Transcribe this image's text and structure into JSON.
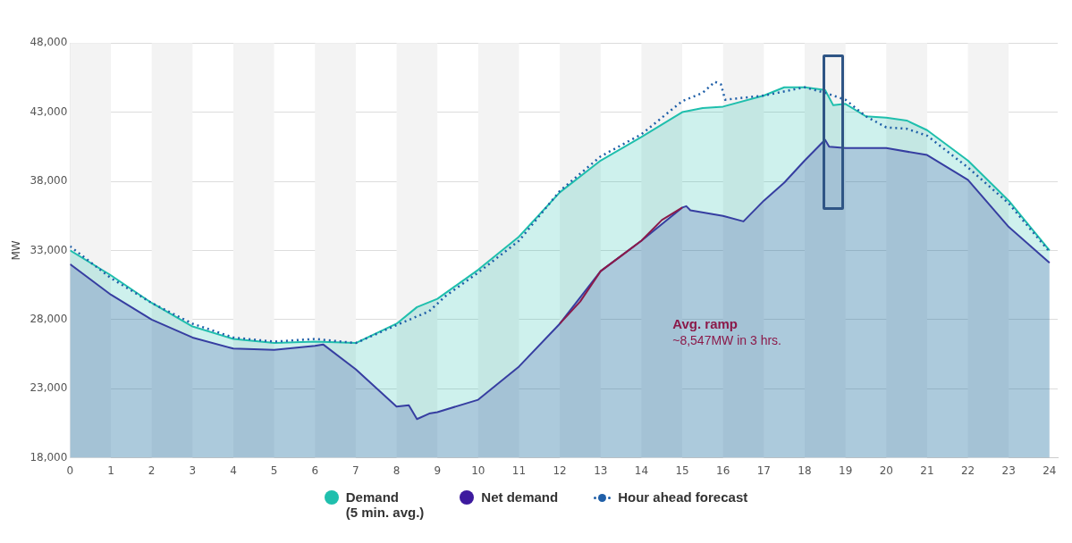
{
  "chart_data": {
    "type": "area",
    "ylabel": "MW",
    "xlim": [
      0,
      24.2
    ],
    "xticks": [
      0,
      1,
      2,
      3,
      4,
      5,
      6,
      7,
      8,
      9,
      10,
      11,
      12,
      13,
      14,
      15,
      16,
      17,
      18,
      19,
      20,
      21,
      22,
      23,
      24
    ],
    "ylim": [
      18000,
      48000
    ],
    "yticks": [
      {
        "value": 18000,
        "label": "18,000"
      },
      {
        "value": 23000,
        "label": "23,000"
      },
      {
        "value": 28000,
        "label": "28,000"
      },
      {
        "value": 33000,
        "label": "33,000"
      },
      {
        "value": 38000,
        "label": "38,000"
      },
      {
        "value": 43000,
        "label": "43,000"
      },
      {
        "value": 48000,
        "label": "48,000"
      }
    ],
    "grid": "y",
    "legend": "bottom",
    "marker": "none",
    "series": [
      {
        "name": "Demand\n(5 min. avg.)",
        "color": "#1fbfad",
        "x": [
          0,
          1,
          2,
          3,
          4,
          5,
          6,
          7,
          8,
          8.5,
          9,
          10,
          11,
          12,
          13,
          14,
          15,
          15.5,
          16,
          17,
          17.5,
          18,
          18.5,
          18.7,
          19,
          19.5,
          20,
          20.5,
          21,
          22,
          23,
          24
        ],
        "values": [
          33000,
          31200,
          29200,
          27500,
          26600,
          26300,
          26400,
          26300,
          27700,
          28900,
          29500,
          31600,
          34000,
          37200,
          39500,
          41200,
          43000,
          43300,
          43400,
          44200,
          44800,
          44800,
          44600,
          43500,
          43600,
          42700,
          42600,
          42400,
          41700,
          39500,
          36600,
          33000
        ]
      },
      {
        "name": "Net demand",
        "color": "#3d1a9e",
        "x": [
          0,
          1,
          2,
          3,
          4,
          5,
          6,
          6.2,
          7,
          8,
          8.3,
          8.5,
          8.8,
          9,
          10,
          11,
          12,
          13,
          14,
          15,
          15.1,
          15.2,
          16,
          16.5,
          17,
          17.5,
          18,
          18.5,
          18.6,
          19,
          20,
          21,
          22,
          23,
          24
        ],
        "values": [
          32000,
          29800,
          28000,
          26700,
          25900,
          25800,
          26100,
          26200,
          24400,
          21700,
          21800,
          20800,
          21200,
          21300,
          22200,
          24600,
          27700,
          31500,
          33700,
          36100,
          36200,
          35900,
          35500,
          35100,
          36600,
          37900,
          39500,
          41000,
          40500,
          40400,
          40400,
          39900,
          38100,
          34700,
          32100
        ]
      },
      {
        "name": "Hour ahead forecast",
        "type": "line",
        "line_style": "dotted",
        "color": "#1f5fa8",
        "x": [
          0,
          1,
          2,
          3,
          4,
          5,
          6,
          7,
          8,
          8.8,
          9.2,
          10,
          11,
          12,
          13,
          14,
          15,
          15.5,
          15.8,
          15.95,
          16.05,
          17,
          18,
          18.5,
          19,
          19.5,
          20,
          20.5,
          21,
          22,
          23,
          24
        ],
        "values": [
          33300,
          31000,
          29200,
          27700,
          26700,
          26400,
          26600,
          26300,
          27600,
          28600,
          29700,
          31400,
          33700,
          37300,
          39800,
          41400,
          43800,
          44400,
          45200,
          45000,
          43900,
          44200,
          44800,
          44400,
          43900,
          42700,
          41900,
          41800,
          41300,
          39000,
          36400,
          32900
        ]
      },
      {
        "type": "line",
        "color": "#8b1a4a",
        "x": [
          12,
          12.5,
          13,
          13.5,
          14,
          14.5,
          15
        ],
        "values": [
          27700,
          29300,
          31500,
          32600,
          33700,
          35200,
          36100
        ]
      }
    ],
    "bands": [
      {
        "axis": "x",
        "from": 0,
        "to": 1,
        "color": "#f3f3f3"
      },
      {
        "axis": "x",
        "from": 2,
        "to": 3,
        "color": "#f3f3f3"
      },
      {
        "axis": "x",
        "from": 4,
        "to": 5,
        "color": "#f3f3f3"
      },
      {
        "axis": "x",
        "from": 6,
        "to": 7,
        "color": "#f3f3f3"
      },
      {
        "axis": "x",
        "from": 8,
        "to": 9,
        "color": "#f3f3f3"
      },
      {
        "axis": "x",
        "from": 10,
        "to": 11,
        "color": "#f3f3f3"
      },
      {
        "axis": "x",
        "from": 12,
        "to": 13,
        "color": "#f3f3f3"
      },
      {
        "axis": "x",
        "from": 14,
        "to": 15,
        "color": "#f3f3f3"
      },
      {
        "axis": "x",
        "from": 16,
        "to": 17,
        "color": "#f3f3f3"
      },
      {
        "axis": "x",
        "from": 18,
        "to": 19,
        "color": "#f3f3f3"
      },
      {
        "axis": "x",
        "from": 20,
        "to": 21,
        "color": "#f3f3f3"
      },
      {
        "axis": "x",
        "from": 22,
        "to": 23,
        "color": "#f3f3f3"
      }
    ],
    "annotations": [
      "Avg. ramp",
      "~8,547MW in 3 hrs."
    ]
  }
}
